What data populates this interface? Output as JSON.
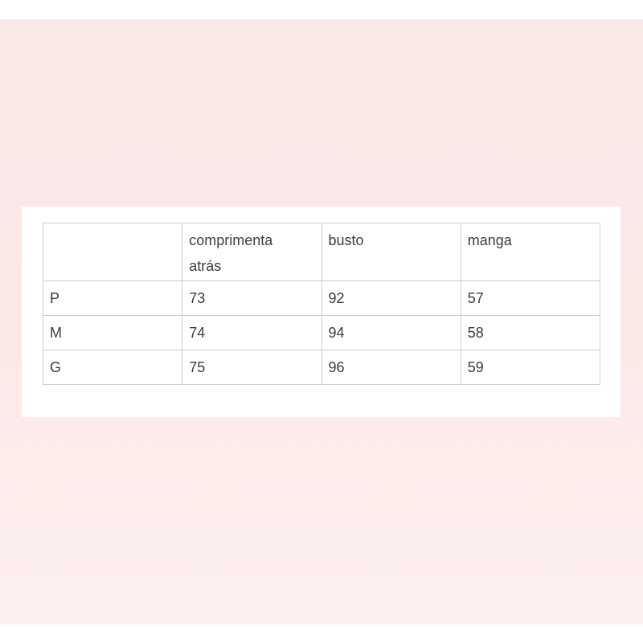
{
  "theme": {
    "page": "#ffffff",
    "pink_top": "#fae8e7",
    "pink_mid": "#fbe9e8",
    "pink_bottom": "#fdf0ee",
    "panel": "#ffffff",
    "border": "#cccccc",
    "text": "#3c3c3c"
  },
  "header_display": [
    "",
    "comprimenta\natrás",
    "busto",
    "manga"
  ],
  "chart_data": {
    "type": "table",
    "title": "",
    "columns": [
      "",
      "comprimenta atrás",
      "busto",
      "manga"
    ],
    "categories": [
      "P",
      "M",
      "G"
    ],
    "series": [
      {
        "name": "comprimenta atrás",
        "values": [
          73,
          74,
          75
        ]
      },
      {
        "name": "busto",
        "values": [
          92,
          94,
          96
        ]
      },
      {
        "name": "manga",
        "values": [
          57,
          58,
          59
        ]
      }
    ]
  }
}
